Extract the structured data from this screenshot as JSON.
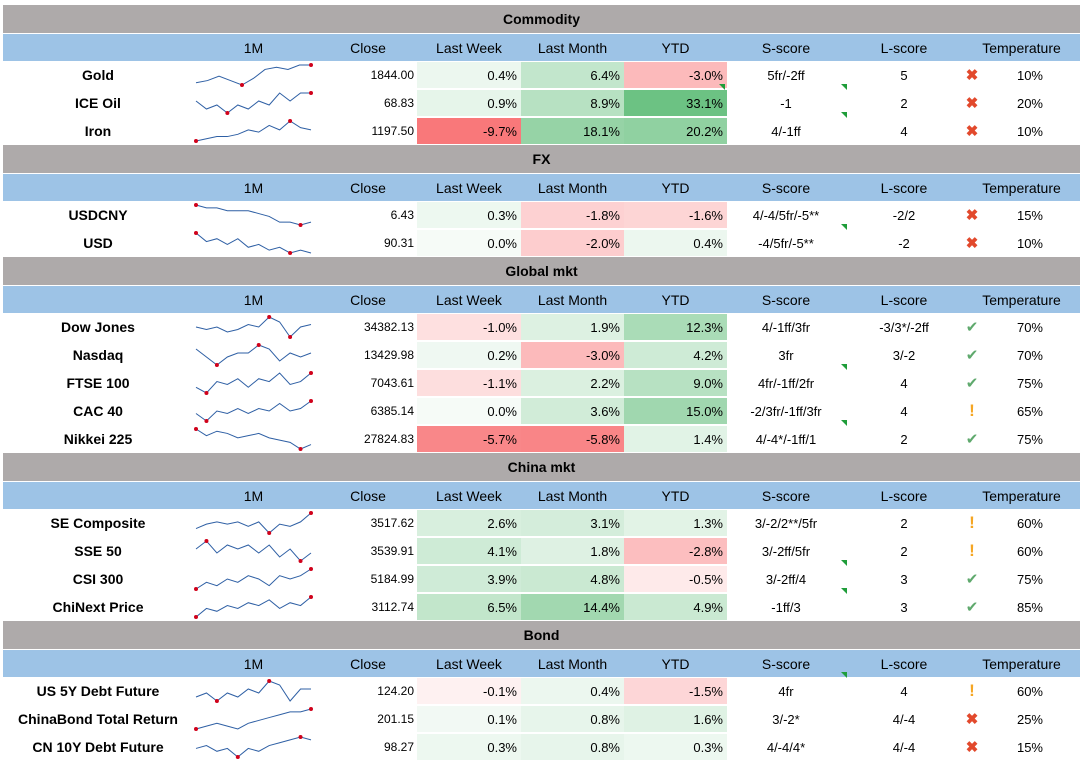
{
  "headers": {
    "c1": "1M",
    "c2": "Close",
    "c3": "Last Week",
    "c4": "Last Month",
    "c5": "YTD",
    "c6": "S-score",
    "c7": "L-score",
    "c8": "Temperature"
  },
  "colors": {
    "section": "#aeaaaa",
    "header": "#9dc3e6",
    "spark_line": "#2e5fa4",
    "spark_marker": "#d0021b",
    "icon_x": "#e2492c",
    "icon_check": "#5fa96d",
    "icon_warn": "#f5a623"
  },
  "sections": [
    {
      "title": "Commodity",
      "rows": [
        {
          "name": "Gold",
          "close": "1844.00",
          "lw": "0.4%",
          "lm": "6.4%",
          "ytd": "-3.0%",
          "s": "5fr/-2ff",
          "l": "5",
          "icon": "x-icon",
          "temp": "10%",
          "spark": [
            3,
            4,
            6,
            4,
            2,
            5,
            9,
            10,
            9,
            11,
            11
          ]
        },
        {
          "name": "ICE Oil",
          "close": "68.83",
          "lw": "0.9%",
          "lm": "8.9%",
          "ytd": "33.1%",
          "s": "-1",
          "l": "2",
          "icon": "x-icon",
          "temp": "20%",
          "spark": [
            6,
            4,
            5,
            3,
            5,
            4,
            6,
            5,
            8,
            6,
            8,
            8
          ]
        },
        {
          "name": "Iron",
          "close": "1197.50",
          "lw": "-9.7%",
          "lm": "18.1%",
          "ytd": "20.2%",
          "s": "4/-1ff",
          "l": "4",
          "icon": "x-icon",
          "temp": "10%",
          "spark": [
            1,
            2,
            3,
            3,
            4,
            6,
            5,
            8,
            6,
            10,
            7,
            6
          ]
        }
      ]
    },
    {
      "title": "FX",
      "rows": [
        {
          "name": "USDCNY",
          "close": "6.43",
          "lw": "0.3%",
          "lm": "-1.8%",
          "ytd": "-1.6%",
          "s": "4/-4/5fr/-5**",
          "l": "-2/2",
          "icon": "x-icon",
          "temp": "15%",
          "spark": [
            10,
            9,
            9,
            8,
            8,
            8,
            7,
            6,
            4,
            4,
            3,
            4
          ]
        },
        {
          "name": "USD",
          "close": "90.31",
          "lw": "0.0%",
          "lm": "-2.0%",
          "ytd": "0.4%",
          "s": "-4/5fr/-5**",
          "l": "-2",
          "icon": "x-icon",
          "temp": "10%",
          "spark": [
            10,
            7,
            8,
            6,
            8,
            5,
            6,
            4,
            5,
            3,
            4,
            3
          ]
        }
      ]
    },
    {
      "title": "Global mkt",
      "rows": [
        {
          "name": "Dow Jones",
          "close": "34382.13",
          "lw": "-1.0%",
          "lm": "1.9%",
          "ytd": "12.3%",
          "s": "4/-1ff/3fr",
          "l": "-3/3*/-2ff",
          "icon": "check-icon",
          "temp": "70%",
          "spark": [
            6,
            5,
            6,
            4,
            5,
            7,
            6,
            10,
            8,
            2,
            6,
            7
          ]
        },
        {
          "name": "Nasdaq",
          "close": "13429.98",
          "lw": "0.2%",
          "lm": "-3.0%",
          "ytd": "4.2%",
          "s": "3fr",
          "l": "3/-2",
          "icon": "check-icon",
          "temp": "70%",
          "spark": [
            7,
            5,
            3,
            5,
            6,
            6,
            8,
            7,
            4,
            6,
            5,
            6
          ]
        },
        {
          "name": "FTSE 100",
          "close": "7043.61",
          "lw": "-1.1%",
          "lm": "2.2%",
          "ytd": "9.0%",
          "s": "4fr/-1ff/2fr",
          "l": "4",
          "icon": "check-icon",
          "temp": "75%",
          "spark": [
            3,
            1,
            5,
            4,
            6,
            3,
            6,
            5,
            8,
            4,
            5,
            8
          ]
        },
        {
          "name": "CAC 40",
          "close": "6385.14",
          "lw": "0.0%",
          "lm": "3.6%",
          "ytd": "15.0%",
          "s": "-2/3fr/-1ff/3fr",
          "l": "4",
          "icon": "warn-icon",
          "temp": "65%",
          "spark": [
            4,
            1,
            5,
            4,
            6,
            4,
            6,
            5,
            8,
            5,
            6,
            9
          ]
        },
        {
          "name": "Nikkei 225",
          "close": "27824.83",
          "lw": "-5.7%",
          "lm": "-5.8%",
          "ytd": "1.4%",
          "s": "4/-4*/-1ff/1",
          "l": "2",
          "icon": "check-icon",
          "temp": "75%",
          "spark": [
            10,
            7,
            9,
            8,
            6,
            7,
            8,
            6,
            5,
            4,
            1,
            3
          ]
        }
      ]
    },
    {
      "title": "China mkt",
      "rows": [
        {
          "name": "SE Composite",
          "close": "3517.62",
          "lw": "2.6%",
          "lm": "3.1%",
          "ytd": "1.3%",
          "s": "3/-2/2**/5fr",
          "l": "2",
          "icon": "warn-icon",
          "temp": "60%",
          "spark": [
            4,
            6,
            7,
            6,
            7,
            5,
            7,
            2,
            6,
            5,
            7,
            11
          ]
        },
        {
          "name": "SSE 50",
          "close": "3539.91",
          "lw": "4.1%",
          "lm": "1.8%",
          "ytd": "-2.8%",
          "s": "3/-2ff/5fr",
          "l": "2",
          "icon": "warn-icon",
          "temp": "60%",
          "spark": [
            6,
            8,
            5,
            7,
            6,
            7,
            5,
            7,
            4,
            6,
            3,
            5
          ]
        },
        {
          "name": "CSI 300",
          "close": "5184.99",
          "lw": "3.9%",
          "lm": "4.8%",
          "ytd": "-0.5%",
          "s": "3/-2ff/4",
          "l": "3",
          "icon": "check-icon",
          "temp": "75%",
          "spark": [
            3,
            5,
            4,
            6,
            5,
            7,
            6,
            4,
            7,
            6,
            7,
            9
          ]
        },
        {
          "name": "ChiNext Price",
          "close": "3112.74",
          "lw": "6.5%",
          "lm": "14.4%",
          "ytd": "4.9%",
          "s": "-1ff/3",
          "l": "3",
          "icon": "check-icon",
          "temp": "85%",
          "spark": [
            2,
            5,
            4,
            6,
            5,
            7,
            6,
            8,
            5,
            7,
            6,
            9
          ]
        }
      ]
    },
    {
      "title": "Bond",
      "rows": [
        {
          "name": "US 5Y Debt Future",
          "close": "124.20",
          "lw": "-0.1%",
          "lm": "0.4%",
          "ytd": "-1.5%",
          "s": "4fr",
          "l": "4",
          "icon": "warn-icon",
          "temp": "60%",
          "spark": [
            5,
            6,
            4,
            6,
            5,
            7,
            6,
            9,
            8,
            4,
            7,
            7
          ]
        },
        {
          "name": "ChinaBond Total Return",
          "close": "201.15",
          "lw": "0.1%",
          "lm": "0.8%",
          "ytd": "1.6%",
          "s": "3/-2*",
          "l": "4/-4",
          "icon": "x-icon",
          "temp": "25%",
          "spark": [
            2,
            3,
            4,
            3,
            2,
            4,
            5,
            6,
            7,
            8,
            8,
            9
          ]
        },
        {
          "name": "CN 10Y Debt Future",
          "close": "98.27",
          "lw": "0.3%",
          "lm": "0.8%",
          "ytd": "0.3%",
          "s": "4/-4/4*",
          "l": "4/-4",
          "icon": "x-icon",
          "temp": "15%",
          "spark": [
            4,
            5,
            3,
            4,
            1,
            4,
            3,
            5,
            6,
            7,
            8,
            7
          ]
        }
      ]
    }
  ]
}
